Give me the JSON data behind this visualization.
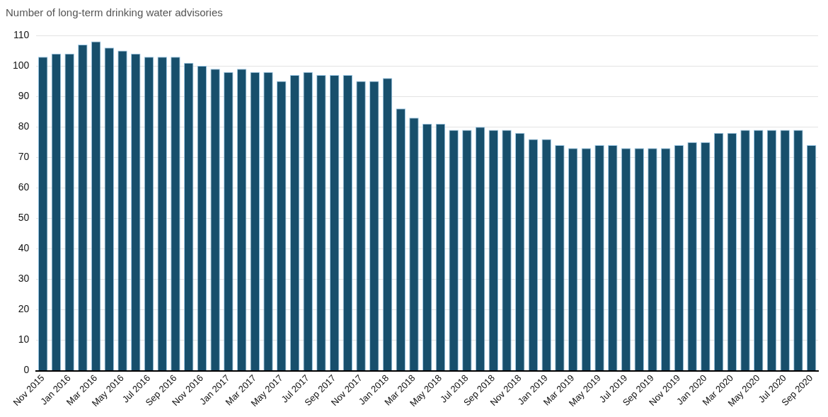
{
  "chart_data": {
    "type": "bar",
    "title": "Number of long-term drinking water advisories",
    "categories": [
      "Nov 2015",
      null,
      "Jan 2016",
      null,
      "Mar 2016",
      null,
      "May 2016",
      null,
      "Jul 2016",
      null,
      "Sep 2016",
      null,
      "Nov 2016",
      null,
      "Jan 2017",
      null,
      "Mar 2017",
      null,
      "May 2017",
      null,
      "Jul 2017",
      null,
      "Sep 2017",
      null,
      "Nov 2017",
      null,
      "Jan 2018",
      null,
      "Mar 2018",
      null,
      "May 2018",
      null,
      "Jul 2018",
      null,
      "Sep 2018",
      null,
      "Nov 2018",
      null,
      "Jan 2019",
      null,
      "Mar 2019",
      null,
      "May 2019",
      null,
      "Jul 2019",
      null,
      "Sep 2019",
      null,
      "Nov 2019",
      null,
      "Jan 2020",
      null,
      "Mar 2020",
      null,
      "May 2020",
      null,
      "Jul 2020",
      null,
      "Sep 2020"
    ],
    "values": [
      103,
      104,
      104,
      107,
      108,
      106,
      105,
      104,
      103,
      103,
      103,
      101,
      100,
      99,
      98,
      99,
      98,
      98,
      95,
      97,
      98,
      97,
      97,
      97,
      95,
      95,
      96,
      86,
      83,
      81,
      81,
      79,
      79,
      80,
      79,
      79,
      78,
      76,
      76,
      74,
      73,
      73,
      74,
      74,
      73,
      73,
      73,
      73,
      74,
      75,
      75,
      78,
      78,
      79,
      79,
      79,
      79,
      79,
      74
    ],
    "color": "#174f6c",
    "ylim": [
      0,
      110
    ],
    "yticks": [
      0,
      10,
      20,
      30,
      40,
      50,
      60,
      70,
      80,
      90,
      100,
      110
    ],
    "grid": "y"
  }
}
